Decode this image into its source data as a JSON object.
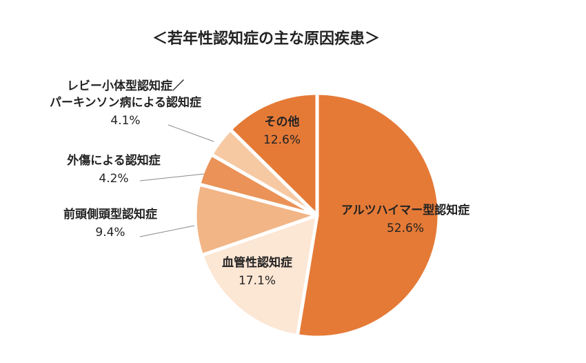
{
  "chart_data": {
    "type": "pie",
    "title": "＜若年性認知症の主な原因疾患＞",
    "slices": [
      {
        "label_lines": [
          "アルツハイマー型認知症"
        ],
        "value": 52.6,
        "value_label": "52.6%",
        "color": "#E57A37"
      },
      {
        "label_lines": [
          "血管性認知症"
        ],
        "value": 17.1,
        "value_label": "17.1%",
        "color": "#FCE6D4"
      },
      {
        "label_lines": [
          "前頭側頭型認知症"
        ],
        "value": 9.4,
        "value_label": "9.4%",
        "color": "#F2B586"
      },
      {
        "label_lines": [
          "外傷による認知症"
        ],
        "value": 4.2,
        "value_label": "4.2%",
        "color": "#EA9257"
      },
      {
        "label_lines": [
          "レビー小体型認知症／",
          "パーキンソン病による認知症"
        ],
        "value": 4.1,
        "value_label": "4.1%",
        "color": "#F6C9A3"
      },
      {
        "label_lines": [
          "その他"
        ],
        "value": 12.6,
        "value_label": "12.6%",
        "color": "#E57A37"
      }
    ]
  }
}
